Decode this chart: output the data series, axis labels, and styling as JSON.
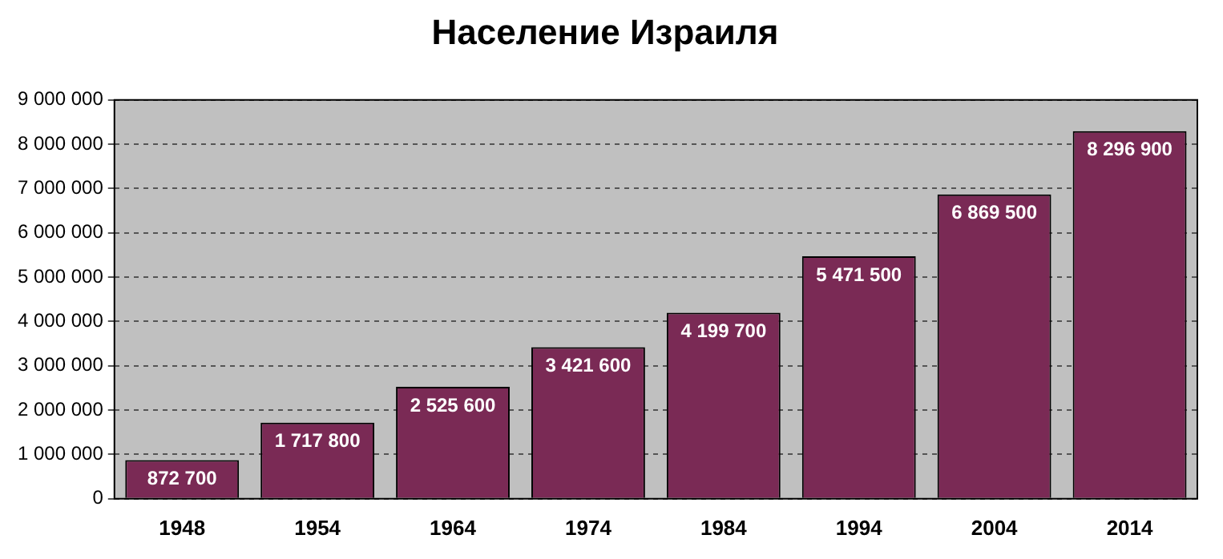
{
  "chart_data": {
    "type": "bar",
    "title": "Население Израиля",
    "categories": [
      "1948",
      "1954",
      "1964",
      "1974",
      "1984",
      "1994",
      "2004",
      "2014"
    ],
    "values": [
      872700,
      1717800,
      2525600,
      3421600,
      4199700,
      5471500,
      6869500,
      8296900
    ],
    "color": "#7a2a55",
    "ylim": [
      0,
      9000000
    ],
    "yticks": [
      0,
      1000000,
      2000000,
      3000000,
      4000000,
      5000000,
      6000000,
      7000000,
      8000000,
      9000000
    ],
    "grid": "y",
    "data_labels": true,
    "legend": false
  }
}
